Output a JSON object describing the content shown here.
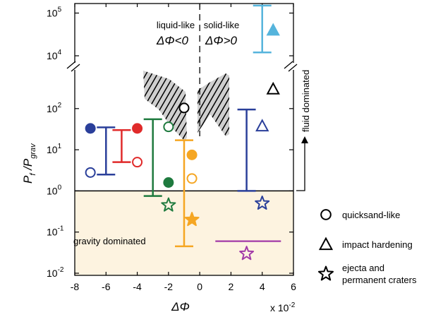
{
  "chart_data": {
    "type": "scatter",
    "xlabel": "ΔΦ",
    "ylabel_main": "P",
    "ylabel_sub1": "f",
    "ylabel_mid": " /P",
    "ylabel_sub2": "grav",
    "x_multiplier": "x 10",
    "x_multiplier_exp": "-2",
    "x_ticks": [
      "-8",
      "-6",
      "-4",
      "-2",
      "0",
      "2",
      "4",
      "6"
    ],
    "x_range": [
      -8,
      6
    ],
    "y_scale": "log (broken axis)",
    "y_ticks_low": [
      {
        "base": "10",
        "exp": "-2"
      },
      {
        "base": "10",
        "exp": "-1"
      },
      {
        "base": "10",
        "exp": "0"
      },
      {
        "base": "10",
        "exp": "1"
      },
      {
        "base": "10",
        "exp": "2"
      }
    ],
    "y_ticks_high": [
      {
        "base": "10",
        "exp": "4"
      },
      {
        "base": "10",
        "exp": "5"
      }
    ],
    "regions": {
      "liquid_label_1": "liquid-like",
      "liquid_label_2": "ΔΦ<0",
      "solid_label_1": "solid-like",
      "solid_label_2": "ΔΦ>0",
      "gravity": "gravity dominated",
      "fluid": "fluid dominated",
      "gravity_fill": "#fdf3e0"
    },
    "legend": [
      {
        "marker": "circle",
        "label": "quicksand-like"
      },
      {
        "marker": "triangle",
        "label": "impact hardening"
      },
      {
        "marker": "star",
        "label_1": "ejecta and",
        "label_2": "permanent craters"
      }
    ],
    "error_bars": [
      {
        "x": -6.0,
        "y_low": 2.5,
        "y_high": 35,
        "color": "#2a3f9a"
      },
      {
        "x": -5.0,
        "y_low": 5,
        "y_high": 30,
        "color": "#e02a2a"
      },
      {
        "x": -3.0,
        "y_low": 0.75,
        "y_high": 55,
        "color": "#1e7a3e"
      },
      {
        "x": -1.0,
        "y_low": 0.045,
        "y_high": 17,
        "color": "#f5a623"
      },
      {
        "x": 3.0,
        "y_low": 1.0,
        "y_high": 95,
        "color": "#2a3f9a"
      },
      {
        "x": 4.0,
        "y_low": 12000,
        "y_high": 150000,
        "color": "#55b4dc"
      }
    ],
    "hline_segments": [
      {
        "x_start": 1.0,
        "x_end": 5.2,
        "y": 0.06,
        "color": "#a23aa8"
      }
    ],
    "points": [
      {
        "shape": "circle",
        "fill": true,
        "x": -7.0,
        "y": 33,
        "color": "#2a3f9a"
      },
      {
        "shape": "circle",
        "fill": false,
        "x": -7.0,
        "y": 2.8,
        "color": "#2a3f9a"
      },
      {
        "shape": "circle",
        "fill": true,
        "x": -4.0,
        "y": 33,
        "color": "#e02a2a"
      },
      {
        "shape": "circle",
        "fill": false,
        "x": -4.0,
        "y": 5.0,
        "color": "#e02a2a"
      },
      {
        "shape": "circle",
        "fill": false,
        "x": -2.0,
        "y": 36,
        "color": "#1e7a3e"
      },
      {
        "shape": "circle",
        "fill": true,
        "x": -2.0,
        "y": 1.6,
        "color": "#1e7a3e"
      },
      {
        "shape": "circle",
        "fill": true,
        "x": -0.5,
        "y": 7.5,
        "color": "#f5a623"
      },
      {
        "shape": "circle",
        "fill": false,
        "x": -0.5,
        "y": 2.0,
        "color": "#f5a623"
      },
      {
        "shape": "circle",
        "fill": false,
        "x": -1.0,
        "y": 600,
        "color": "#000000"
      },
      {
        "shape": "triangle",
        "fill": false,
        "x": 4.7,
        "y": 300,
        "color": "#000000"
      },
      {
        "shape": "triangle",
        "fill": false,
        "x": 4.0,
        "y": 38,
        "color": "#2a3f9a"
      },
      {
        "shape": "triangle",
        "fill": true,
        "x": 4.7,
        "y": 40000,
        "color": "#55b4dc"
      },
      {
        "shape": "star",
        "fill": false,
        "x": -2.0,
        "y": 0.45,
        "color": "#1e7a3e"
      },
      {
        "shape": "star",
        "fill": true,
        "x": -0.5,
        "y": 0.2,
        "color": "#f5a623"
      },
      {
        "shape": "star",
        "fill": false,
        "x": 4.0,
        "y": 0.5,
        "color": "#2a3f9a"
      },
      {
        "shape": "star",
        "fill": false,
        "x": 3.0,
        "y": 0.03,
        "color": "#a23aa8"
      }
    ]
  }
}
